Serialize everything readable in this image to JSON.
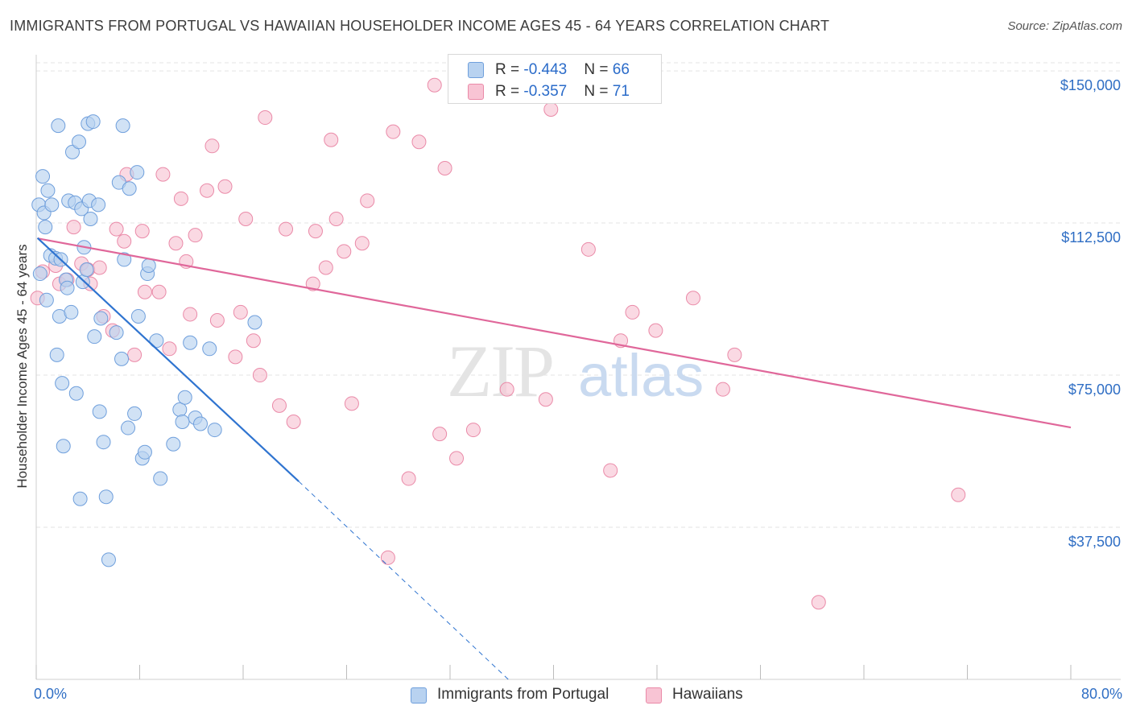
{
  "title": "IMMIGRANTS FROM PORTUGAL VS HAWAIIAN HOUSEHOLDER INCOME AGES 45 - 64 YEARS CORRELATION CHART",
  "source": "Source: ZipAtlas.com",
  "watermark": {
    "zip": "ZIP",
    "atlas": "atlas"
  },
  "legend": {
    "series1": {
      "r_label": "R = ",
      "r_value": "-0.443",
      "n_label": "N = ",
      "n_value": "66"
    },
    "series2": {
      "r_label": "R = ",
      "r_value": "-0.357",
      "n_label": "N = ",
      "n_value": "71"
    }
  },
  "bottom_legend": {
    "series1": "Immigrants from Portugal",
    "series2": "Hawaiians"
  },
  "x_axis": {
    "min_label": "0.0%",
    "max_label": "80.0%"
  },
  "colors": {
    "blue_fill": "#b8d2f0",
    "blue_stroke": "#6f9fdc",
    "blue_line": "#2f74d0",
    "pink_fill": "#f8c4d4",
    "pink_stroke": "#ea8aa8",
    "pink_line": "#e0679a",
    "tick_label": "#2f6ec4",
    "grid": "#e3e3e3"
  },
  "chart_data": {
    "type": "scatter",
    "title": "IMMIGRANTS FROM PORTUGAL VS HAWAIIAN HOUSEHOLDER INCOME AGES 45 - 64 YEARS CORRELATION CHART",
    "xlabel": "",
    "ylabel": "Householder Income Ages 45 - 64 years",
    "xlim": [
      0,
      80
    ],
    "ylim": [
      0,
      152000
    ],
    "y_ticks": [
      {
        "value": 37500,
        "label": "$37,500"
      },
      {
        "value": 75000,
        "label": "$75,000"
      },
      {
        "value": 112500,
        "label": "$112,500"
      },
      {
        "value": 150000,
        "label": "$150,000"
      }
    ],
    "x_tick_count": 11,
    "series": [
      {
        "name": "Immigrants from Portugal",
        "r": -0.443,
        "n": 66,
        "trend": {
          "x": [
            0.1,
            20.3
          ],
          "y": [
            108800,
            48800
          ]
        },
        "trend_dashed": {
          "x": [
            20.3,
            36.5
          ],
          "y": [
            48800,
            0
          ]
        },
        "points": [
          [
            0.2,
            117000
          ],
          [
            0.3,
            100000
          ],
          [
            0.5,
            124000
          ],
          [
            0.6,
            115000
          ],
          [
            0.7,
            111500
          ],
          [
            0.8,
            93500
          ],
          [
            1.1,
            104500
          ],
          [
            1.2,
            117000
          ],
          [
            1.5,
            103800
          ],
          [
            1.6,
            80000
          ],
          [
            1.7,
            136500
          ],
          [
            1.8,
            89500
          ],
          [
            1.9,
            103500
          ],
          [
            2.0,
            73000
          ],
          [
            2.1,
            57500
          ],
          [
            2.3,
            98500
          ],
          [
            2.4,
            96500
          ],
          [
            2.5,
            118000
          ],
          [
            2.7,
            90500
          ],
          [
            2.8,
            130000
          ],
          [
            3.0,
            117500
          ],
          [
            3.1,
            70500
          ],
          [
            3.3,
            132500
          ],
          [
            3.4,
            44500
          ],
          [
            3.5,
            116000
          ],
          [
            3.6,
            98000
          ],
          [
            3.7,
            106500
          ],
          [
            3.9,
            101000
          ],
          [
            4.0,
            137000
          ],
          [
            4.1,
            118000
          ],
          [
            4.2,
            113500
          ],
          [
            4.4,
            137500
          ],
          [
            4.5,
            84500
          ],
          [
            4.8,
            117000
          ],
          [
            4.9,
            66000
          ],
          [
            5.0,
            89000
          ],
          [
            5.4,
            45000
          ],
          [
            5.6,
            29500
          ],
          [
            6.2,
            85500
          ],
          [
            6.4,
            122500
          ],
          [
            6.6,
            79000
          ],
          [
            6.7,
            136500
          ],
          [
            6.8,
            103500
          ],
          [
            7.1,
            62000
          ],
          [
            7.2,
            121000
          ],
          [
            7.6,
            65500
          ],
          [
            7.8,
            125000
          ],
          [
            7.9,
            89500
          ],
          [
            8.2,
            54500
          ],
          [
            8.4,
            56000
          ],
          [
            8.6,
            100000
          ],
          [
            8.7,
            102000
          ],
          [
            9.3,
            83500
          ],
          [
            9.6,
            49500
          ],
          [
            10.6,
            58000
          ],
          [
            11.1,
            66500
          ],
          [
            11.3,
            63500
          ],
          [
            11.5,
            69500
          ],
          [
            11.9,
            83000
          ],
          [
            12.3,
            64500
          ],
          [
            12.7,
            63000
          ],
          [
            13.4,
            81500
          ],
          [
            13.8,
            61500
          ],
          [
            16.9,
            88000
          ],
          [
            0.9,
            120500
          ],
          [
            5.2,
            58500
          ]
        ]
      },
      {
        "name": "Hawaiians",
        "r": -0.357,
        "n": 71,
        "trend": {
          "x": [
            0.1,
            80.0
          ],
          "y": [
            108700,
            62100
          ]
        },
        "points": [
          [
            0.1,
            94000
          ],
          [
            0.5,
            100500
          ],
          [
            1.5,
            102000
          ],
          [
            1.8,
            97500
          ],
          [
            2.4,
            98500
          ],
          [
            2.9,
            111500
          ],
          [
            3.5,
            102500
          ],
          [
            4.0,
            101000
          ],
          [
            4.2,
            97500
          ],
          [
            4.9,
            101500
          ],
          [
            5.2,
            89500
          ],
          [
            5.9,
            86000
          ],
          [
            6.2,
            111000
          ],
          [
            6.8,
            108000
          ],
          [
            7.0,
            124500
          ],
          [
            7.6,
            80000
          ],
          [
            8.2,
            110500
          ],
          [
            8.4,
            95500
          ],
          [
            9.5,
            95500
          ],
          [
            9.8,
            124500
          ],
          [
            10.3,
            81500
          ],
          [
            10.8,
            107500
          ],
          [
            11.2,
            118500
          ],
          [
            11.6,
            103000
          ],
          [
            11.9,
            90000
          ],
          [
            12.3,
            109500
          ],
          [
            13.2,
            120500
          ],
          [
            13.6,
            131500
          ],
          [
            14.0,
            88500
          ],
          [
            14.6,
            121500
          ],
          [
            15.4,
            79500
          ],
          [
            15.8,
            90500
          ],
          [
            16.2,
            113500
          ],
          [
            16.8,
            83500
          ],
          [
            17.3,
            75000
          ],
          [
            17.7,
            138500
          ],
          [
            18.8,
            67500
          ],
          [
            19.3,
            111000
          ],
          [
            19.9,
            63500
          ],
          [
            21.4,
            97500
          ],
          [
            21.6,
            110500
          ],
          [
            22.4,
            101500
          ],
          [
            22.8,
            133000
          ],
          [
            23.2,
            113500
          ],
          [
            23.8,
            105500
          ],
          [
            24.4,
            68000
          ],
          [
            25.2,
            107500
          ],
          [
            25.6,
            118000
          ],
          [
            27.2,
            30000
          ],
          [
            27.6,
            135000
          ],
          [
            28.8,
            49500
          ],
          [
            29.6,
            132500
          ],
          [
            30.8,
            146500
          ],
          [
            31.2,
            60500
          ],
          [
            31.6,
            126000
          ],
          [
            32.5,
            54500
          ],
          [
            33.8,
            61500
          ],
          [
            34.7,
            149000
          ],
          [
            36.4,
            71500
          ],
          [
            39.4,
            69000
          ],
          [
            39.8,
            140500
          ],
          [
            42.7,
            106000
          ],
          [
            44.4,
            51500
          ],
          [
            45.2,
            83500
          ],
          [
            46.1,
            90500
          ],
          [
            47.9,
            86000
          ],
          [
            50.8,
            94000
          ],
          [
            53.1,
            71500
          ],
          [
            54.0,
            80000
          ],
          [
            60.5,
            19000
          ],
          [
            71.3,
            45500
          ]
        ]
      }
    ]
  }
}
